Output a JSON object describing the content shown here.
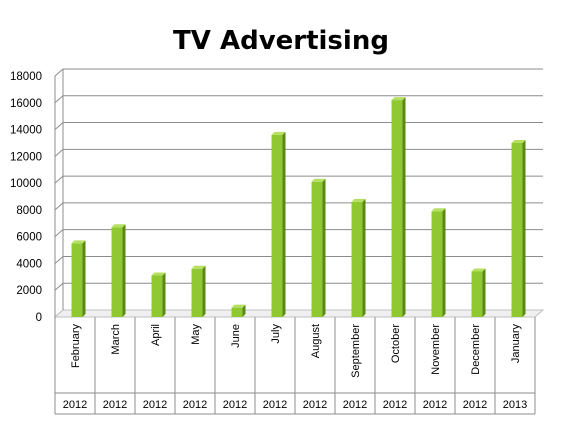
{
  "chart_data": {
    "type": "bar",
    "title": "TV Advertising",
    "categories": [
      "February",
      "March",
      "April",
      "May",
      "June",
      "July",
      "August",
      "September",
      "October",
      "November",
      "December",
      "January"
    ],
    "category_groups": [
      "2012",
      "2012",
      "2012",
      "2012",
      "2012",
      "2012",
      "2012",
      "2012",
      "2012",
      "2012",
      "2012",
      "2013"
    ],
    "values": [
      5500,
      6700,
      3100,
      3600,
      700,
      13600,
      10100,
      8600,
      16200,
      7900,
      3400,
      13000
    ],
    "ylim": [
      0,
      18000
    ],
    "yticks": [
      0,
      2000,
      4000,
      6000,
      8000,
      10000,
      12000,
      14000,
      16000,
      18000
    ],
    "grid": true,
    "legend": "none",
    "colors": {
      "bar_front": "#8fc830",
      "bar_side": "#5a8a14",
      "bar_top": "#b5e060",
      "grid": "#8c8c8c",
      "floor": "#c0c0c0"
    }
  }
}
